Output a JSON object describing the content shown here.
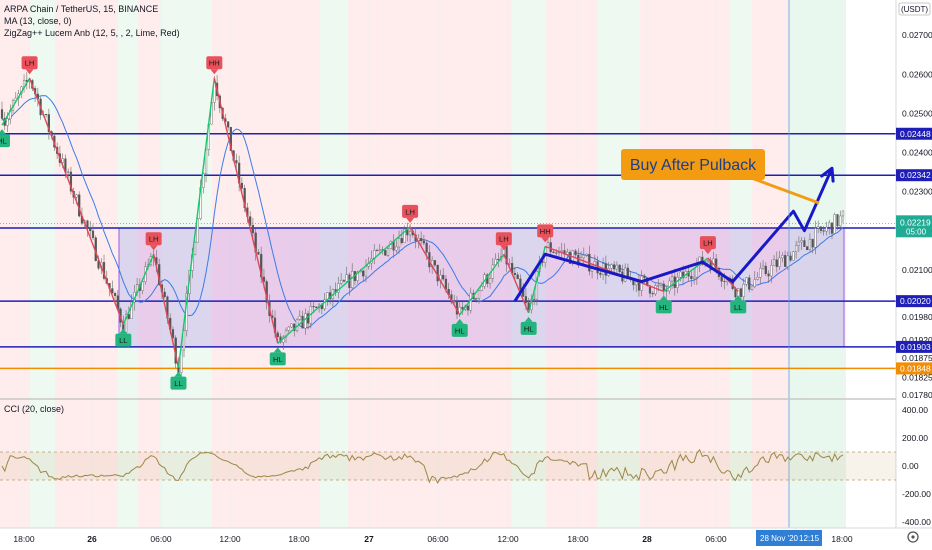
{
  "chart_data": {
    "type": "candlestick",
    "title": "ARPA Chain / TetherUS, 15, BINANCE",
    "indicators": [
      "MA (13, close, 0)",
      "ZigZag++ Lucem Anb (12, 5, , 2, Lime, Red)"
    ],
    "currency_badge": "USDT",
    "price_axis": {
      "ylim": [
        0.0178,
        0.0279
      ],
      "ticks": [
        "0.02700",
        "0.02600",
        "0.02500",
        "0.02400",
        "0.02300",
        "0.02200",
        "0.02100",
        "0.01980",
        "0.01920",
        "0.01875",
        "0.01825",
        "0.01780"
      ]
    },
    "horizontal_levels": [
      {
        "value": 0.02448,
        "label": "0.02448",
        "color": "#1f1fb8"
      },
      {
        "value": 0.02342,
        "label": "0.02342",
        "color": "#1f1fb8"
      },
      {
        "value": 0.02207,
        "label": "0.02207",
        "color": "#1f1fb8"
      },
      {
        "value": 0.0202,
        "label": "0.02020",
        "color": "#1f1fb8"
      },
      {
        "value": 0.01903,
        "label": "0.01903",
        "color": "#1f1fb8"
      },
      {
        "value": 0.01848,
        "label": "0.01848",
        "color": "#f28c00"
      }
    ],
    "current_price": {
      "value": 0.02219,
      "label": "0.02219",
      "countdown": "05:00"
    },
    "range_box": {
      "top": 0.02207,
      "bottom": 0.01903
    },
    "annotation": {
      "text": "Buy After Pulback"
    },
    "zigzag_pivots": [
      {
        "t": 0,
        "price": 0.0247,
        "label": "HL",
        "kind": "low"
      },
      {
        "t": 10,
        "price": 0.0259,
        "label": "LH",
        "kind": "high"
      },
      {
        "t": 44,
        "price": 0.0196,
        "label": "LL",
        "kind": "low"
      },
      {
        "t": 55,
        "price": 0.0214,
        "label": "LH",
        "kind": "high"
      },
      {
        "t": 64,
        "price": 0.0185,
        "label": "LL",
        "kind": "low"
      },
      {
        "t": 77,
        "price": 0.0259,
        "label": "HH",
        "kind": "high"
      },
      {
        "t": 100,
        "price": 0.01912,
        "label": "HL",
        "kind": "low"
      },
      {
        "t": 148,
        "price": 0.0221,
        "label": "LH",
        "kind": "high"
      },
      {
        "t": 166,
        "price": 0.01985,
        "label": "HL",
        "kind": "low"
      },
      {
        "t": 182,
        "price": 0.0214,
        "label": "LH",
        "kind": "high"
      },
      {
        "t": 191,
        "price": 0.0199,
        "label": "HL",
        "kind": "low"
      },
      {
        "t": 197,
        "price": 0.0216,
        "label": "HH",
        "kind": "high"
      },
      {
        "t": 240,
        "price": 0.02045,
        "label": "HL",
        "kind": "low"
      },
      {
        "t": 256,
        "price": 0.0213,
        "label": "LH",
        "kind": "high"
      },
      {
        "t": 267,
        "price": 0.02045,
        "label": "LL",
        "kind": "low"
      }
    ],
    "projection_path": [
      [
        186,
        0.0202
      ],
      [
        197,
        0.0214
      ],
      [
        232,
        0.0207
      ],
      [
        254,
        0.0212
      ],
      [
        265,
        0.0207
      ],
      [
        287,
        0.0225
      ],
      [
        291,
        0.022
      ],
      [
        301,
        0.0236
      ]
    ],
    "time_axis": {
      "labels": [
        "18:00",
        "26",
        "06:00",
        "12:00",
        "18:00",
        "27",
        "06:00",
        "12:00",
        "18:00",
        "28",
        "06:00",
        "12:15",
        "18:00"
      ],
      "highlight": {
        "date": "28 Nov '20",
        "time": "12:15"
      }
    },
    "cci": {
      "title": "CCI (20, close)",
      "ticks": [
        "400.00",
        "200.00",
        "0.00",
        "-200.00",
        "-400.00"
      ],
      "band": [
        -100,
        100
      ],
      "ylim": [
        -400,
        400
      ]
    }
  }
}
